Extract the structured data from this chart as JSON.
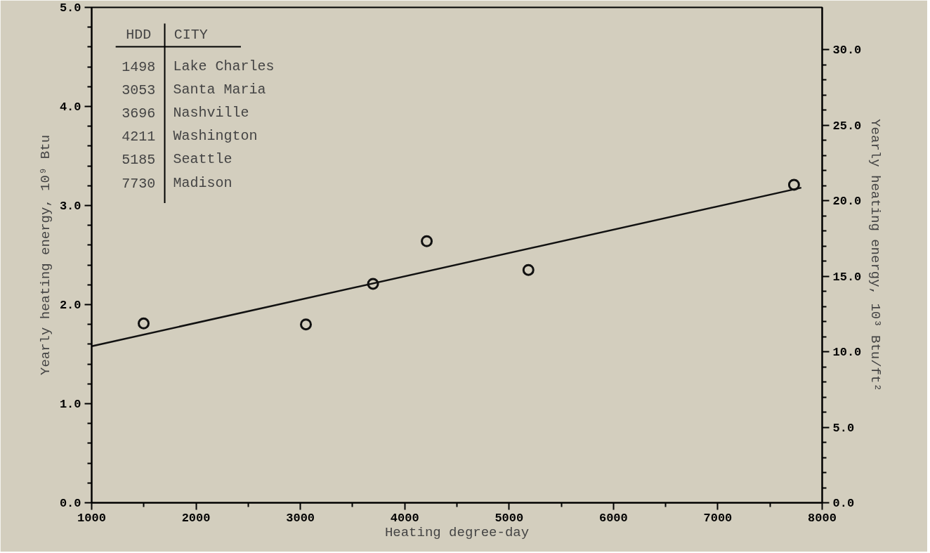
{
  "chart_data": {
    "type": "scatter",
    "xlabel": "Heating degree-day",
    "ylabel": "Yearly heating energy, 10⁹ Btu",
    "y2label": "Yearly heating energy, 10³ Btu/ft²",
    "x": [
      1498,
      3053,
      3696,
      4211,
      5185,
      7730
    ],
    "series": [
      {
        "color": "#111111",
        "marker": "circle",
        "values": [
          1.81,
          1.8,
          2.21,
          2.64,
          2.35,
          3.21
        ]
      },
      {
        "type": "line",
        "marker": "none",
        "color": "#111111",
        "x": [
          1000,
          7800
        ],
        "values": [
          1.58,
          3.18
        ]
      }
    ],
    "xlim": [
      1000,
      8000
    ],
    "xticks": [
      1000,
      2000,
      3000,
      4000,
      5000,
      6000,
      7000,
      8000
    ],
    "ylim": [
      0,
      5
    ],
    "yticks": [
      {
        "value": 0,
        "label": "0.0"
      },
      {
        "value": 1,
        "label": "1.0"
      },
      {
        "value": 2,
        "label": "2.0"
      },
      {
        "value": 3,
        "label": "3.0"
      },
      {
        "value": 4,
        "label": "4.0"
      },
      {
        "value": 5,
        "label": "5.0"
      }
    ],
    "y2lim": [
      0,
      32.8
    ],
    "y2ticks": [
      {
        "value": 0,
        "label": "0.0"
      },
      {
        "value": 5,
        "label": "5.0"
      },
      {
        "value": 10,
        "label": "10.0"
      },
      {
        "value": 15,
        "label": "15.0"
      },
      {
        "value": 20,
        "label": "20.0"
      },
      {
        "value": 25,
        "label": "25.0"
      },
      {
        "value": 30,
        "label": "30.0"
      }
    ],
    "annotations": [
      "HDD",
      "CITY",
      "1498",
      "Lake Charles",
      "3053",
      "Santa Maria",
      "3696",
      "Nashville",
      "4211",
      "Washington",
      "5185",
      "Seattle",
      "7730",
      "Madison"
    ],
    "grid": false
  }
}
